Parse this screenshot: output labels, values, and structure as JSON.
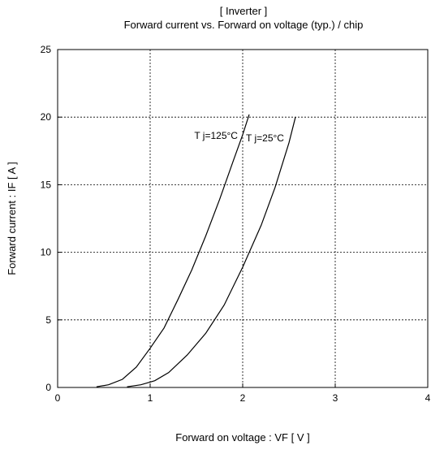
{
  "chart_data": {
    "type": "line",
    "title": "[ Inverter ]",
    "subtitle": "Forward current  vs.  Forward on voltage  (typ.) / chip",
    "xlabel": "Forward on voltage  :  VF  [ V ]",
    "ylabel": "Forward current  :  IF  [ A ]",
    "xlim": [
      0,
      4
    ],
    "ylim": [
      0,
      25
    ],
    "xticks": [
      "0",
      "1",
      "2",
      "3",
      "4"
    ],
    "yticks": [
      "0",
      "5",
      "10",
      "15",
      "20",
      "25"
    ],
    "grid": true,
    "series": [
      {
        "name": "T j=125°C",
        "x": [
          0.42,
          0.55,
          0.7,
          0.85,
          1.0,
          1.15,
          1.3,
          1.45,
          1.6,
          1.75,
          1.9,
          2.0,
          2.07
        ],
        "y": [
          0.05,
          0.2,
          0.6,
          1.5,
          2.9,
          4.4,
          6.5,
          8.7,
          11.2,
          13.9,
          16.8,
          18.7,
          20.2
        ]
      },
      {
        "name": "T j=25°C",
        "x": [
          0.75,
          0.9,
          1.05,
          1.2,
          1.4,
          1.6,
          1.8,
          2.0,
          2.2,
          2.35,
          2.5,
          2.57
        ],
        "y": [
          0.05,
          0.2,
          0.5,
          1.1,
          2.4,
          4.0,
          6.1,
          8.9,
          12.0,
          14.8,
          18.1,
          20.0
        ]
      }
    ]
  }
}
